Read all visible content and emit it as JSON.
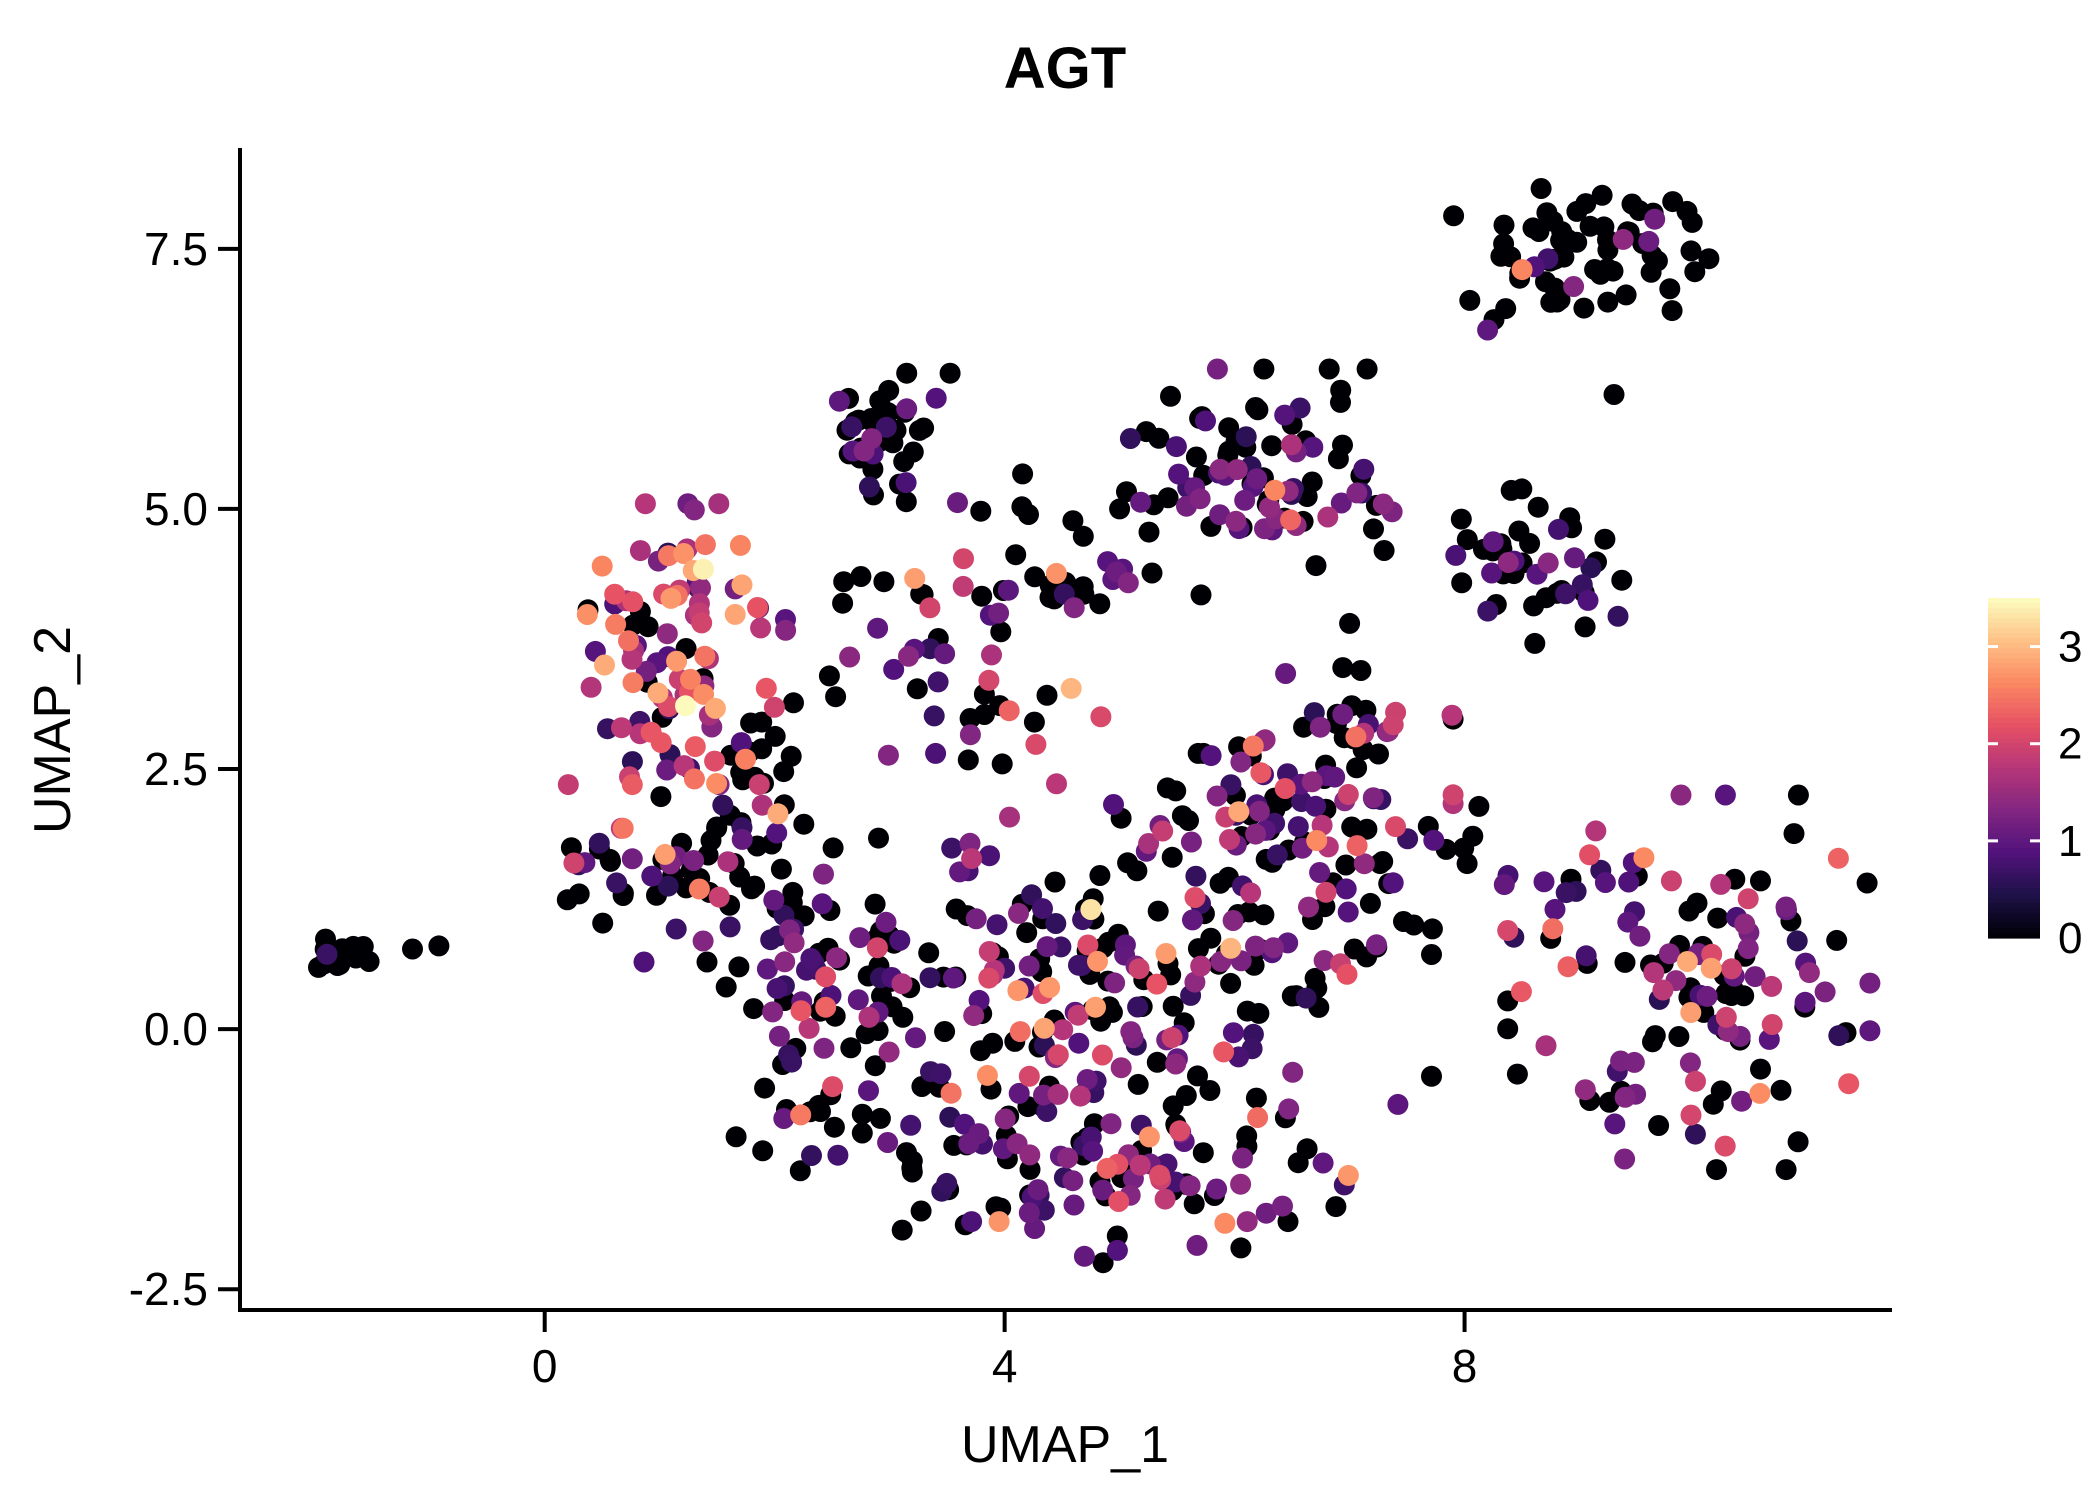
{
  "chart_data": {
    "type": "scatter",
    "title": "AGT",
    "xlabel": "UMAP_1",
    "ylabel": "UMAP_2",
    "xlim": [
      -2.65,
      11.7
    ],
    "ylim": [
      -2.7,
      8.45
    ],
    "grid": false,
    "legend_position": "right",
    "xticks": [
      {
        "v": 0,
        "label": "0"
      },
      {
        "v": 4,
        "label": "4"
      },
      {
        "v": 8,
        "label": "8"
      }
    ],
    "yticks": [
      {
        "v": -2.5,
        "label": "-2.5"
      },
      {
        "v": 0,
        "label": "0.0"
      },
      {
        "v": 2.5,
        "label": "2.5"
      },
      {
        "v": 5,
        "label": "5.0"
      },
      {
        "v": 7.5,
        "label": "7.5"
      }
    ],
    "colorbar": {
      "vmin": 0,
      "vmax": 3.5,
      "ticks": [
        {
          "v": 0,
          "label": "0"
        },
        {
          "v": 1,
          "label": "1"
        },
        {
          "v": 2,
          "label": "2"
        },
        {
          "v": 3,
          "label": "3"
        }
      ],
      "colormap": "magma",
      "stops": [
        "#000004",
        "#1D1147",
        "#51127C",
        "#822681",
        "#B63679",
        "#E65164",
        "#FB8861",
        "#FEC287",
        "#FCFDBF"
      ]
    },
    "point_radius": 10.5,
    "seed": 1337,
    "value_bins": [
      [
        0,
        0
      ],
      [
        0.55,
        1.45
      ],
      [
        1.6,
        2.35
      ],
      [
        2.4,
        3.0
      ],
      [
        3.1,
        3.5
      ]
    ],
    "clusters": [
      {
        "name": "far-left-island",
        "cx": -1.75,
        "cy": 0.72,
        "sx": 0.16,
        "sy": 0.09,
        "n": 14,
        "mix": [
          0.85,
          0.15,
          0,
          0,
          0
        ]
      },
      {
        "name": "left-high-expression",
        "cx": 1.15,
        "cy": 3.7,
        "sx": 0.42,
        "sy": 0.6,
        "n": 95,
        "mix": [
          0.18,
          0.27,
          0.3,
          0.22,
          0.03
        ]
      },
      {
        "name": "upper-dark",
        "cx": 2.95,
        "cy": 5.72,
        "sx": 0.26,
        "sy": 0.26,
        "n": 40,
        "mix": [
          0.82,
          0.18,
          0,
          0,
          0
        ]
      },
      {
        "name": "mid-top",
        "cx": 6.2,
        "cy": 5.4,
        "sx": 0.52,
        "sy": 0.42,
        "n": 80,
        "mix": [
          0.45,
          0.48,
          0.06,
          0.01,
          0
        ]
      },
      {
        "name": "top-right",
        "cx": 9.0,
        "cy": 7.45,
        "sx": 0.5,
        "sy": 0.28,
        "n": 65,
        "mix": [
          0.88,
          0.12,
          0,
          0,
          0
        ]
      },
      {
        "name": "right-mid",
        "cx": 8.6,
        "cy": 4.45,
        "sx": 0.42,
        "sy": 0.33,
        "n": 45,
        "mix": [
          0.6,
          0.36,
          0.04,
          0,
          0
        ]
      },
      {
        "name": "upper-band",
        "cx": 4.2,
        "cy": 4.32,
        "sx": 0.75,
        "sy": 0.16,
        "n": 28,
        "mix": [
          0.6,
          0.3,
          0.07,
          0.03,
          0
        ]
      },
      {
        "name": "central-main",
        "cx": 4.9,
        "cy": 0.4,
        "sx": 1.25,
        "sy": 1.0,
        "n": 255,
        "mix": [
          0.46,
          0.38,
          0.13,
          0.03,
          0
        ]
      },
      {
        "name": "central-left",
        "cx": 2.45,
        "cy": 0.2,
        "sx": 0.5,
        "sy": 0.85,
        "n": 85,
        "mix": [
          0.5,
          0.38,
          0.1,
          0.02,
          0
        ]
      },
      {
        "name": "central-bottom",
        "cx": 4.9,
        "cy": -1.3,
        "sx": 0.95,
        "sy": 0.42,
        "n": 85,
        "mix": [
          0.45,
          0.42,
          0.11,
          0.02,
          0
        ]
      },
      {
        "name": "central-upper-right",
        "cx": 6.55,
        "cy": 2.1,
        "sx": 0.6,
        "sy": 0.45,
        "n": 55,
        "mix": [
          0.5,
          0.35,
          0.12,
          0.03,
          0
        ]
      },
      {
        "name": "bottom-right",
        "cx": 9.95,
        "cy": 0.45,
        "sx": 0.7,
        "sy": 0.8,
        "n": 130,
        "mix": [
          0.45,
          0.38,
          0.15,
          0.02,
          0
        ]
      },
      {
        "name": "left-mid",
        "cx": 1.3,
        "cy": 1.5,
        "sx": 0.5,
        "sy": 0.38,
        "n": 55,
        "mix": [
          0.55,
          0.33,
          0.09,
          0.03,
          0
        ]
      },
      {
        "name": "left-strand",
        "cx": 1.9,
        "cy": 2.55,
        "sx": 0.28,
        "sy": 0.45,
        "n": 25,
        "mix": [
          0.5,
          0.3,
          0.15,
          0.05,
          0
        ]
      },
      {
        "name": "mid-connector",
        "cx": 3.6,
        "cy": 3.3,
        "sx": 0.55,
        "sy": 0.45,
        "n": 30,
        "mix": [
          0.5,
          0.33,
          0.12,
          0.05,
          0
        ]
      },
      {
        "name": "upper-sparse",
        "cx": 4.6,
        "cy": 4.95,
        "sx": 0.8,
        "sy": 0.25,
        "n": 12,
        "mix": [
          0.75,
          0.25,
          0,
          0,
          0
        ]
      },
      {
        "name": "pink-hook",
        "cx": 6.95,
        "cy": 2.8,
        "sx": 0.4,
        "sy": 0.3,
        "n": 25,
        "mix": [
          0.4,
          0.35,
          0.2,
          0.05,
          0
        ]
      },
      {
        "name": "right-connector",
        "cx": 7.6,
        "cy": 1.5,
        "sx": 0.4,
        "sy": 0.45,
        "n": 18,
        "mix": [
          0.6,
          0.35,
          0.05,
          0,
          0
        ]
      }
    ],
    "highlight_points": [
      [
        -1.15,
        0.77,
        0
      ],
      [
        -0.92,
        0.8,
        0
      ],
      [
        8.5,
        7.3,
        2.6
      ],
      [
        8.2,
        6.72,
        1.0
      ],
      [
        9.3,
        6.1,
        0
      ],
      [
        1.38,
        4.42,
        3.4
      ],
      [
        0.5,
        4.45,
        2.6
      ],
      [
        0.52,
        3.5,
        2.9
      ],
      [
        4.45,
        4.38,
        2.7
      ],
      [
        4.75,
        1.15,
        3.3
      ],
      [
        6.35,
        5.18,
        2.6
      ],
      [
        8.9,
        0.6,
        2.3
      ],
      [
        6.2,
        -0.85,
        2.4
      ],
      [
        2.6,
        4.3,
        0
      ],
      [
        2.75,
        4.35,
        0
      ],
      [
        2.95,
        4.3,
        0
      ],
      [
        3.35,
        4.05,
        2.0
      ],
      [
        0.3,
        1.3,
        0
      ],
      [
        0.35,
        1.6,
        1.0
      ],
      [
        7.3,
        4.6,
        0
      ],
      [
        7.0,
        3.9,
        0
      ],
      [
        5.0,
        5.0,
        0
      ],
      [
        4.15,
        5.02,
        0
      ]
    ]
  }
}
